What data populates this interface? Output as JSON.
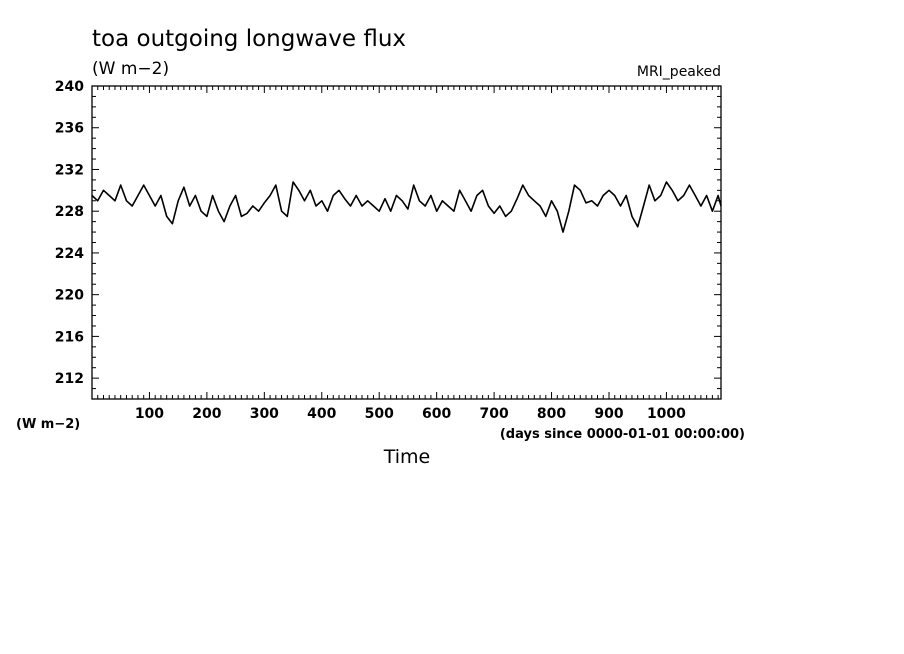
{
  "chart_data": {
    "type": "line",
    "title": "toa outgoing longwave flux",
    "units": "(W m−2)",
    "model_label": "MRI_peaked",
    "y_axis_units_label": "(W m−2)",
    "x_units_label": "(days since 0000-01-01 00:00:00)",
    "xlabel": "Time",
    "ylabel": "",
    "xlim": [
      0,
      1095
    ],
    "ylim": [
      210,
      240
    ],
    "x_ticks": [
      100,
      200,
      300,
      400,
      500,
      600,
      700,
      800,
      900,
      1000
    ],
    "y_ticks": [
      212,
      216,
      220,
      224,
      228,
      232,
      236,
      240
    ],
    "grid": false,
    "series": [
      {
        "x": [
          0,
          10,
          20,
          30,
          40,
          50,
          60,
          70,
          80,
          90,
          100,
          110,
          120,
          130,
          140,
          150,
          160,
          170,
          180,
          190,
          200,
          210,
          220,
          230,
          240,
          250,
          260,
          270,
          280,
          290,
          300,
          310,
          320,
          330,
          340,
          350,
          360,
          370,
          380,
          390,
          400,
          410,
          420,
          430,
          440,
          450,
          460,
          470,
          480,
          490,
          500,
          510,
          520,
          530,
          540,
          550,
          560,
          570,
          580,
          590,
          600,
          610,
          620,
          630,
          640,
          650,
          660,
          670,
          680,
          690,
          700,
          710,
          720,
          730,
          740,
          750,
          760,
          770,
          780,
          790,
          800,
          810,
          820,
          830,
          840,
          850,
          860,
          870,
          880,
          890,
          900,
          910,
          920,
          930,
          940,
          950,
          960,
          970,
          980,
          990,
          1000,
          1010,
          1020,
          1030,
          1040,
          1050,
          1060,
          1070,
          1080,
          1090,
          1095
        ],
        "values": [
          229.5,
          229.0,
          230.0,
          229.5,
          229.0,
          230.5,
          229.0,
          228.5,
          229.5,
          230.5,
          229.5,
          228.5,
          229.5,
          227.5,
          226.8,
          229.0,
          230.3,
          228.5,
          229.5,
          228.0,
          227.5,
          229.5,
          228.0,
          227.0,
          228.5,
          229.5,
          227.5,
          227.8,
          228.5,
          228.0,
          228.8,
          229.5,
          230.5,
          228.0,
          227.5,
          230.8,
          230.0,
          229.0,
          230.0,
          228.5,
          229.0,
          228.0,
          229.5,
          230.0,
          229.2,
          228.5,
          229.5,
          228.5,
          229.0,
          228.5,
          228.0,
          229.2,
          228.0,
          229.5,
          229.0,
          228.2,
          230.5,
          229.0,
          228.5,
          229.5,
          228.0,
          229.0,
          228.5,
          228.0,
          230.0,
          229.0,
          228.0,
          229.5,
          230.0,
          228.5,
          227.8,
          228.5,
          227.5,
          228.0,
          229.2,
          230.5,
          229.5,
          229.0,
          228.5,
          227.5,
          229.0,
          228.0,
          226.0,
          228.0,
          230.5,
          230.0,
          228.8,
          229.0,
          228.5,
          229.5,
          230.0,
          229.5,
          228.5,
          229.5,
          227.5,
          226.5,
          228.5,
          230.5,
          229.0,
          229.5,
          230.8,
          230.0,
          229.0,
          229.5,
          230.5,
          229.5,
          228.5,
          229.5,
          228.0,
          229.5,
          228.5
        ]
      }
    ]
  }
}
